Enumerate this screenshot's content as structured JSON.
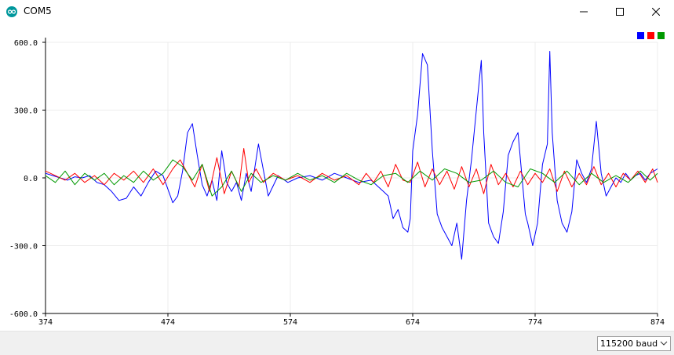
{
  "window": {
    "title": "COM5",
    "icon": "arduino-icon",
    "controls": [
      "minimize-icon",
      "maximize-icon",
      "close-icon"
    ]
  },
  "footer": {
    "baud_select": {
      "value": "115200 baud",
      "icon": "chevron-down-icon"
    }
  },
  "legend": {
    "colors": [
      "#0000ff",
      "#ff0000",
      "#009900"
    ]
  },
  "chart_data": {
    "type": "line",
    "title": "",
    "xlabel": "",
    "ylabel": "",
    "xlim": [
      374,
      874
    ],
    "ylim": [
      -600,
      600
    ],
    "x_ticks": [
      "374",
      "474",
      "574",
      "674",
      "774",
      "874"
    ],
    "y_ticks": [
      "600.0",
      "300.0",
      "0.0",
      "-300.0",
      "-600.0"
    ],
    "grid": true,
    "legend_placement": "top-right",
    "series": [
      {
        "color": "#0000ff",
        "x": [
          374,
          380,
          386,
          392,
          398,
          404,
          410,
          416,
          422,
          428,
          434,
          440,
          446,
          452,
          458,
          464,
          470,
          474,
          478,
          482,
          486,
          490,
          494,
          498,
          502,
          506,
          510,
          514,
          518,
          522,
          526,
          530,
          534,
          538,
          542,
          548,
          556,
          564,
          572,
          580,
          590,
          600,
          610,
          620,
          630,
          640,
          646,
          650,
          654,
          658,
          662,
          666,
          670,
          672,
          674,
          676,
          678,
          682,
          686,
          690,
          694,
          698,
          700,
          702,
          706,
          710,
          714,
          718,
          722,
          726,
          730,
          732,
          736,
          740,
          744,
          748,
          752,
          756,
          760,
          764,
          766,
          768,
          770,
          772,
          776,
          780,
          784,
          786,
          788,
          792,
          796,
          800,
          804,
          808,
          812,
          816,
          820,
          824,
          828,
          832,
          836,
          840,
          844,
          848,
          852,
          856,
          860,
          864,
          868,
          874
        ],
        "y": [
          20,
          10,
          0,
          -10,
          5,
          0,
          10,
          -20,
          -30,
          -60,
          -100,
          -90,
          -40,
          -80,
          -20,
          30,
          10,
          -50,
          -110,
          -80,
          30,
          200,
          240,
          100,
          -30,
          -80,
          -10,
          -100,
          120,
          -20,
          -60,
          -20,
          -100,
          20,
          -60,
          150,
          -80,
          10,
          -20,
          0,
          10,
          -10,
          20,
          0,
          -20,
          -10,
          -40,
          -60,
          -80,
          -180,
          -140,
          -220,
          -240,
          -180,
          120,
          200,
          280,
          550,
          500,
          120,
          -160,
          -220,
          -240,
          -260,
          -300,
          -200,
          -360,
          -100,
          80,
          300,
          520,
          200,
          -200,
          -260,
          -290,
          -150,
          100,
          160,
          200,
          -40,
          -160,
          -200,
          -250,
          -300,
          -200,
          60,
          150,
          560,
          200,
          -100,
          -200,
          -240,
          -150,
          80,
          20,
          -20,
          40,
          250,
          20,
          -80,
          -40,
          0,
          -20,
          20,
          -10,
          10,
          20,
          -10,
          20,
          40
        ]
      },
      {
        "color": "#ff0000",
        "x": [
          374,
          382,
          390,
          398,
          406,
          414,
          422,
          430,
          438,
          446,
          454,
          462,
          470,
          478,
          484,
          490,
          496,
          502,
          508,
          514,
          520,
          526,
          532,
          536,
          540,
          546,
          552,
          560,
          570,
          580,
          590,
          600,
          610,
          620,
          630,
          636,
          642,
          648,
          654,
          660,
          666,
          672,
          678,
          684,
          690,
          696,
          702,
          708,
          714,
          720,
          726,
          732,
          738,
          744,
          750,
          756,
          762,
          768,
          774,
          780,
          786,
          792,
          798,
          804,
          810,
          816,
          822,
          828,
          834,
          840,
          846,
          852,
          858,
          864,
          870,
          874
        ],
        "y": [
          30,
          10,
          -10,
          20,
          -20,
          10,
          -30,
          20,
          -10,
          30,
          -20,
          40,
          -30,
          40,
          80,
          20,
          -40,
          60,
          -60,
          90,
          -70,
          30,
          -40,
          130,
          -20,
          40,
          -20,
          20,
          -10,
          10,
          -20,
          20,
          -10,
          10,
          -30,
          20,
          -20,
          30,
          -40,
          60,
          -10,
          -20,
          70,
          -40,
          40,
          -30,
          30,
          -50,
          50,
          -40,
          40,
          -70,
          60,
          -30,
          20,
          -40,
          30,
          -30,
          20,
          -20,
          40,
          -60,
          30,
          -40,
          20,
          -30,
          50,
          -30,
          20,
          -40,
          20,
          -10,
          30,
          -20,
          40,
          -20
        ]
      },
      {
        "color": "#009900",
        "x": [
          374,
          382,
          390,
          398,
          406,
          414,
          422,
          430,
          438,
          446,
          454,
          462,
          470,
          478,
          486,
          494,
          502,
          510,
          518,
          526,
          534,
          542,
          550,
          560,
          570,
          580,
          590,
          600,
          610,
          620,
          630,
          640,
          650,
          660,
          670,
          680,
          690,
          700,
          710,
          720,
          730,
          740,
          750,
          760,
          770,
          780,
          790,
          800,
          810,
          820,
          830,
          840,
          850,
          860,
          868,
          874
        ],
        "y": [
          10,
          -20,
          30,
          -30,
          20,
          -10,
          20,
          -30,
          10,
          -20,
          30,
          -10,
          20,
          80,
          50,
          -10,
          60,
          -80,
          -40,
          30,
          -60,
          20,
          -20,
          10,
          -10,
          20,
          -10,
          10,
          -20,
          20,
          -10,
          -30,
          10,
          20,
          -20,
          30,
          -10,
          40,
          20,
          -20,
          -10,
          30,
          -20,
          -40,
          40,
          20,
          -20,
          30,
          -30,
          20,
          -20,
          10,
          -20,
          30,
          -10,
          20
        ]
      }
    ]
  }
}
